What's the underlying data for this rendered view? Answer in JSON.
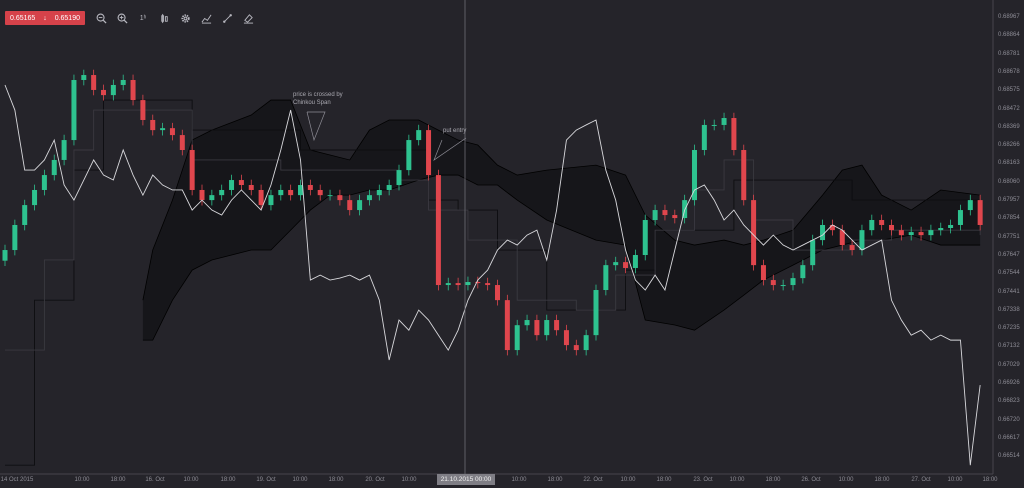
{
  "toolbar": {
    "bid": "0.65165",
    "direction_icon": "arrow-down-icon",
    "ask": "0.65190",
    "icons": [
      "zoom-out-icon",
      "zoom-in-icon",
      "timeframe-icon",
      "candle-type-icon",
      "gear-icon",
      "indicators-icon",
      "draw-line-icon",
      "eraser-icon"
    ],
    "timeframe_label": "1ʰ"
  },
  "colors": {
    "background": "#25242a",
    "up": "#2ec28f",
    "down": "#e0464d",
    "chinkou": "#d8d8dc",
    "cloud": "#141417",
    "line": "#0d0d10",
    "quote_bg": "#d6424a"
  },
  "annotations": {
    "chinkou_note_line1": "price is crossed by",
    "chinkou_note_line2": "Chinkou Span",
    "put_entry": "put entry"
  },
  "crosshair_label": "21.10.2015 00:00",
  "chart_data": {
    "type": "candlestick",
    "price_axis": [
      "0.68967",
      "0.68864",
      "0.68781",
      "0.68678",
      "0.68575",
      "0.68472",
      "0.68369",
      "0.68266",
      "0.68163",
      "0.68060",
      "0.67957",
      "0.67854",
      "0.67751",
      "0.67647",
      "0.67544",
      "0.67441",
      "0.67338",
      "0.67235",
      "0.67132",
      "0.67029",
      "0.66926",
      "0.66823",
      "0.66720",
      "0.66617",
      "0.66514"
    ],
    "ylim": [
      0.6645,
      0.69
    ],
    "time_axis": [
      "14 Oct 2015",
      "10:00",
      "18:00",
      "16. Oct",
      "10:00",
      "18:00",
      "19. Oct",
      "10:00",
      "18:00",
      "20. Oct",
      "10:00",
      "10:00",
      "18:00",
      "22. Oct",
      "10:00",
      "18:00",
      "23. Oct",
      "10:00",
      "18:00",
      "26. Oct",
      "10:00",
      "18:00",
      "27. Oct",
      "10:00",
      "18:00"
    ],
    "closes": [
      0.67661,
      0.67802,
      0.67914,
      0.67999,
      0.68083,
      0.68168,
      0.6828,
      0.68618,
      0.68646,
      0.68562,
      0.68533,
      0.6859,
      0.68618,
      0.68505,
      0.68393,
      0.68336,
      0.68347,
      0.68308,
      0.68224,
      0.67999,
      0.67942,
      0.6797,
      0.67999,
      0.68055,
      0.68027,
      0.67999,
      0.67914,
      0.6797,
      0.67999,
      0.6797,
      0.68027,
      0.67999,
      0.6797,
      0.6797,
      0.67942,
      0.67886,
      0.67942,
      0.6797,
      0.67999,
      0.68027,
      0.68111,
      0.6828,
      0.68336,
      0.68083,
      0.67464,
      0.67475,
      0.67464,
      0.67481,
      0.67475,
      0.67464,
      0.67379,
      0.67098,
      0.67238,
      0.67267,
      0.67182,
      0.67267,
      0.6721,
      0.67126,
      0.67098,
      0.67182,
      0.67436,
      0.67576,
      0.67593,
      0.6756,
      0.67633,
      0.6783,
      0.67886,
      0.67858,
      0.67841,
      0.67942,
      0.68224,
      0.68365,
      0.68365,
      0.68404,
      0.68224,
      0.67942,
      0.67576,
      0.67492,
      0.67464,
      0.67464,
      0.67503,
      0.67576,
      0.67717,
      0.67802,
      0.67773,
      0.67689,
      0.67661,
      0.67773,
      0.6783,
      0.67802,
      0.67773,
      0.67745,
      0.67762,
      0.67745,
      0.67773,
      0.67785,
      0.67802,
      0.67886,
      0.67942,
      0.67802
    ],
    "chinkou_span": [
      0.6859,
      0.68449,
      0.68111,
      0.68111,
      0.68168,
      0.6828,
      0.68027,
      0.67942,
      0.68055,
      0.68168,
      0.68083,
      0.68055,
      0.68224,
      0.68083,
      0.6797,
      0.68083,
      0.68027,
      0.67999,
      0.67999,
      0.67886,
      0.67942,
      0.67886,
      0.67858,
      0.67942,
      0.67999,
      0.67942,
      0.67886,
      0.68027,
      0.68224,
      0.68449,
      0.68168,
      0.67492,
      0.6752,
      0.67492,
      0.67503,
      0.6752,
      0.67492,
      0.6752,
      0.67379,
      0.67042,
      0.67267,
      0.6721,
      0.67323,
      0.67267,
      0.67182,
      0.67098,
      0.6721,
      0.67379,
      0.67492,
      0.67548,
      0.67661,
      0.67717,
      0.67689,
      0.67745,
      0.67773,
      0.67605,
      0.67886,
      0.6828,
      0.68336,
      0.68365,
      0.68393,
      0.68111,
      0.67942,
      0.67661,
      0.67492,
      0.67436,
      0.6752,
      0.67436,
      0.67661,
      0.67886,
      0.67999,
      0.68027,
      0.67942,
      0.6783,
      0.67886,
      0.67802,
      0.67745,
      0.67689,
      0.67745,
      0.67689,
      0.67661,
      0.67689,
      0.67717,
      0.67745,
      0.67802,
      0.67773,
      0.67717,
      0.67661,
      0.67689,
      0.67717,
      0.67379,
      0.67267,
      0.67182,
      0.6721,
      0.67154,
      0.67182,
      0.67154,
      0.67154,
      0.6645,
      0.66901
    ],
    "cloud": [
      [
        14,
        0.67379,
        0.67154
      ],
      [
        15,
        0.67661,
        0.67154
      ],
      [
        17,
        0.67942,
        0.67379
      ],
      [
        19,
        0.6828,
        0.67548
      ],
      [
        21,
        0.68336,
        0.67605
      ],
      [
        25,
        0.68421,
        0.67661
      ],
      [
        27,
        0.68505,
        0.67661
      ],
      [
        29,
        0.68505,
        0.67773
      ],
      [
        31,
        0.68224,
        0.67886
      ],
      [
        33,
        0.68196,
        0.6797
      ],
      [
        35,
        0.68168,
        0.6797
      ],
      [
        37,
        0.68336,
        0.67999
      ],
      [
        39,
        0.68393,
        0.67999
      ],
      [
        42,
        0.68393,
        0.68055
      ],
      [
        44,
        0.68336,
        0.68083
      ],
      [
        46,
        0.6828,
        0.68083
      ],
      [
        48,
        0.68252,
        0.68027
      ],
      [
        50,
        0.68139,
        0.68027
      ],
      [
        52,
        0.68083,
        0.67942
      ],
      [
        55,
        0.68111,
        0.6783
      ],
      [
        60,
        0.68139,
        0.67717
      ],
      [
        63,
        0.68083,
        0.67689
      ],
      [
        65,
        0.67858,
        0.67267
      ],
      [
        68,
        0.67717,
        0.67239
      ],
      [
        70,
        0.67689,
        0.6721
      ],
      [
        73,
        0.67717,
        0.67323
      ],
      [
        75,
        0.67689,
        0.67407
      ],
      [
        77,
        0.67717,
        0.67492
      ],
      [
        80,
        0.67773,
        0.67576
      ],
      [
        83,
        0.6797,
        0.67661
      ],
      [
        85,
        0.68111,
        0.67689
      ],
      [
        87,
        0.68139,
        0.67717
      ],
      [
        89,
        0.6797,
        0.67717
      ],
      [
        92,
        0.67886,
        0.67745
      ],
      [
        95,
        0.67999,
        0.67689
      ],
      [
        99,
        0.6797,
        0.67689
      ]
    ],
    "kijun_sen": [
      [
        0,
        0.6645
      ],
      [
        3,
        0.67379
      ],
      [
        7,
        0.68111
      ],
      [
        10,
        0.68505
      ],
      [
        17,
        0.68505
      ],
      [
        19,
        0.68336
      ],
      [
        25,
        0.68336
      ],
      [
        30,
        0.68224
      ],
      [
        40,
        0.68224
      ],
      [
        43,
        0.67942
      ],
      [
        46,
        0.67886
      ],
      [
        50,
        0.67661
      ],
      [
        55,
        0.67323
      ],
      [
        60,
        0.67323
      ],
      [
        63,
        0.67548
      ],
      [
        66,
        0.67773
      ],
      [
        72,
        0.67773
      ],
      [
        74,
        0.68055
      ],
      [
        84,
        0.68055
      ],
      [
        86,
        0.67942
      ],
      [
        99,
        0.67942
      ]
    ],
    "tenkan_sen": [
      [
        0,
        0.67098
      ],
      [
        4,
        0.67605
      ],
      [
        7,
        0.68224
      ],
      [
        9,
        0.68449
      ],
      [
        16,
        0.68449
      ],
      [
        19,
        0.68168
      ],
      [
        28,
        0.68111
      ],
      [
        40,
        0.68055
      ],
      [
        43,
        0.67886
      ],
      [
        47,
        0.67717
      ],
      [
        52,
        0.67379
      ],
      [
        58,
        0.67323
      ],
      [
        62,
        0.6752
      ],
      [
        66,
        0.67773
      ],
      [
        70,
        0.67999
      ],
      [
        73,
        0.68168
      ],
      [
        76,
        0.6783
      ],
      [
        80,
        0.67661
      ],
      [
        86,
        0.67717
      ],
      [
        90,
        0.67773
      ],
      [
        99,
        0.67745
      ]
    ]
  }
}
